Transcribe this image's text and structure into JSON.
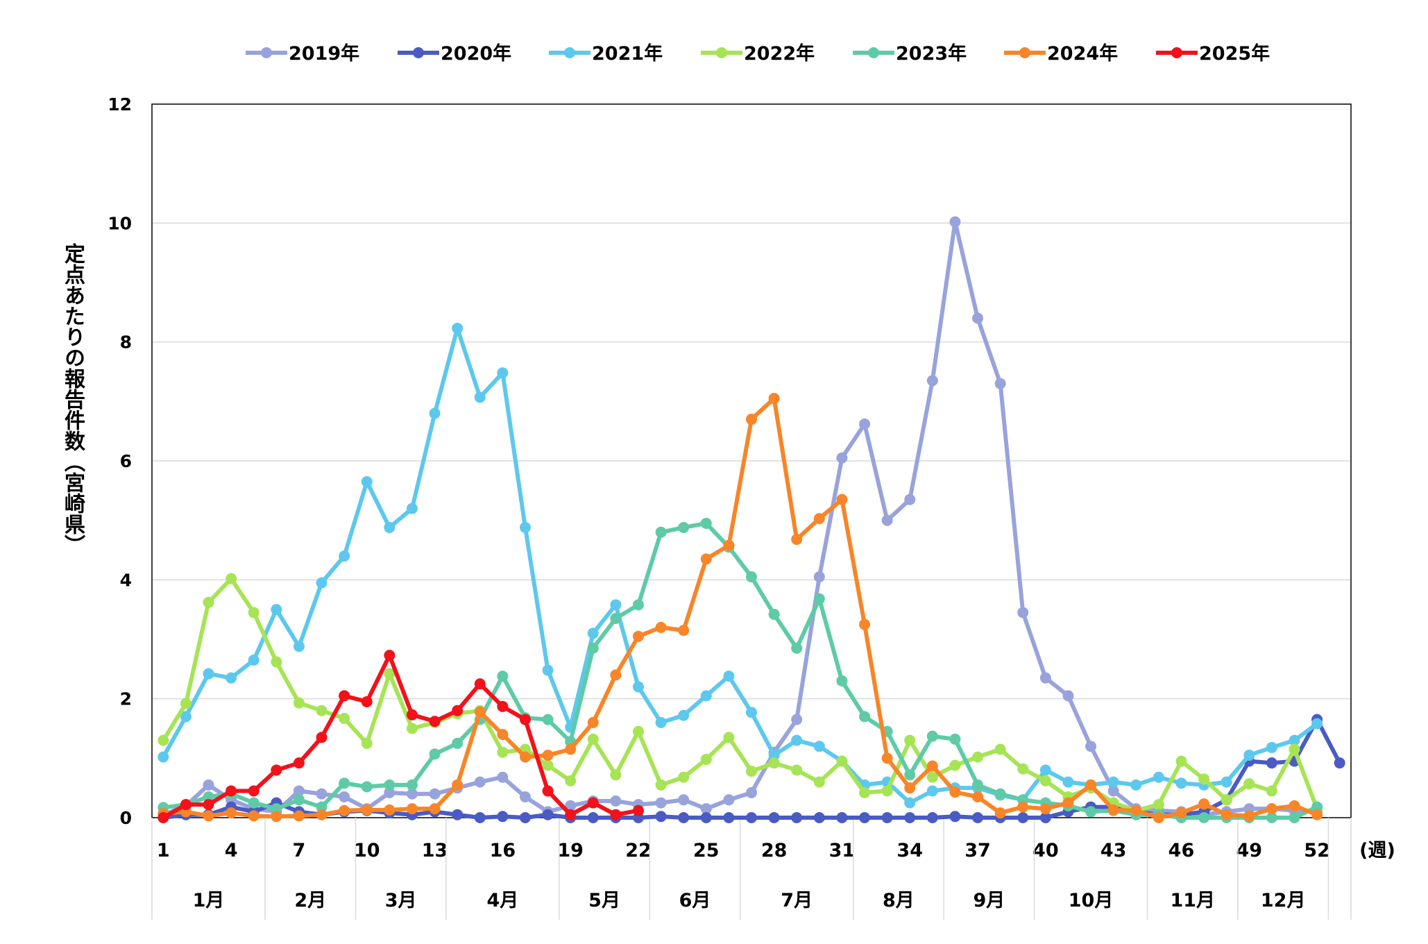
{
  "chart_data": {
    "type": "line",
    "ylabel": "定点あたりの報告件数（宮崎県）",
    "xlabel_unit": "(週)",
    "ylim": [
      0,
      12
    ],
    "yticks": [
      0,
      2,
      4,
      6,
      8,
      10,
      12
    ],
    "xlim": [
      1,
      53
    ],
    "xticks": [
      1,
      4,
      7,
      10,
      13,
      16,
      19,
      22,
      25,
      28,
      31,
      34,
      37,
      40,
      43,
      46,
      49,
      52
    ],
    "grid": "horizontal",
    "legend_position": "top",
    "months": [
      {
        "label": "1月",
        "start": 1,
        "end": 5
      },
      {
        "label": "2月",
        "start": 6,
        "end": 9
      },
      {
        "label": "3月",
        "start": 10,
        "end": 13
      },
      {
        "label": "4月",
        "start": 14,
        "end": 18
      },
      {
        "label": "5月",
        "start": 19,
        "end": 22
      },
      {
        "label": "6月",
        "start": 23,
        "end": 26
      },
      {
        "label": "7月",
        "start": 27,
        "end": 31
      },
      {
        "label": "8月",
        "start": 32,
        "end": 35
      },
      {
        "label": "9月",
        "start": 36,
        "end": 39
      },
      {
        "label": "10月",
        "start": 40,
        "end": 44
      },
      {
        "label": "11月",
        "start": 45,
        "end": 48
      },
      {
        "label": "12月",
        "start": 49,
        "end": 52
      }
    ],
    "series": [
      {
        "name": "2019年",
        "color": "#98A3DC",
        "start": 1,
        "values": [
          0.05,
          0.2,
          0.55,
          0.3,
          0.15,
          0.1,
          0.45,
          0.4,
          0.35,
          0.15,
          0.42,
          0.4,
          0.4,
          0.5,
          0.6,
          0.68,
          0.35,
          0.1,
          0.2,
          0.28,
          0.28,
          0.22,
          0.25,
          0.3,
          0.15,
          0.3,
          0.42,
          1.1,
          1.65,
          4.05,
          6.05,
          6.62,
          5.0,
          5.35,
          7.35,
          10.02,
          8.4,
          7.3,
          3.45,
          2.35,
          2.05,
          1.2,
          0.45,
          0.15,
          0.12,
          0.1,
          0.05,
          0.1,
          0.15,
          0.15,
          0.12,
          0.1
        ]
      },
      {
        "name": "2020年",
        "color": "#4A5BC4",
        "start": 1,
        "values": [
          0.0,
          0.05,
          0.05,
          0.18,
          0.1,
          0.25,
          0.1,
          0.05,
          0.1,
          0.12,
          0.08,
          0.05,
          0.1,
          0.05,
          0.0,
          0.02,
          0.0,
          0.05,
          0.0,
          0.0,
          0.0,
          0.0,
          0.02,
          0.0,
          0.0,
          0.0,
          0.0,
          0.0,
          0.0,
          0.0,
          0.0,
          0.0,
          0.0,
          0.0,
          0.0,
          0.02,
          0.0,
          0.0,
          0.0,
          0.0,
          0.1,
          0.18,
          0.18,
          0.1,
          0.05,
          0.05,
          0.1,
          0.3,
          0.95,
          0.92,
          0.95,
          1.65,
          0.92
        ]
      },
      {
        "name": "2021年",
        "color": "#5DC8ED",
        "start": 1,
        "values": [
          1.02,
          1.7,
          2.42,
          2.35,
          2.65,
          3.5,
          2.88,
          3.95,
          4.4,
          5.65,
          4.88,
          5.2,
          6.8,
          8.23,
          7.07,
          7.48,
          4.88,
          2.48,
          1.52,
          3.1,
          3.58,
          2.2,
          1.6,
          1.72,
          2.05,
          2.38,
          1.77,
          1.05,
          1.3,
          1.2,
          0.95,
          0.55,
          0.6,
          0.25,
          0.45,
          0.5,
          0.5,
          0.38,
          0.3,
          0.8,
          0.6,
          0.55,
          0.6,
          0.55,
          0.68,
          0.58,
          0.55,
          0.6,
          1.05,
          1.18,
          1.3,
          1.58
        ]
      },
      {
        "name": "2022年",
        "color": "#A6E455",
        "start": 1,
        "values": [
          1.3,
          1.92,
          3.62,
          4.02,
          3.45,
          2.62,
          1.93,
          1.8,
          1.67,
          1.25,
          2.42,
          1.5,
          1.6,
          1.75,
          1.8,
          1.1,
          1.15,
          0.88,
          0.62,
          1.32,
          0.72,
          1.45,
          0.55,
          0.68,
          0.98,
          1.35,
          0.78,
          0.92,
          0.8,
          0.6,
          0.95,
          0.42,
          0.45,
          1.3,
          0.68,
          0.88,
          1.02,
          1.15,
          0.82,
          0.62,
          0.35,
          0.5,
          0.25,
          0.12,
          0.22,
          0.95,
          0.65,
          0.3,
          0.57,
          0.45,
          1.15,
          0.15
        ]
      },
      {
        "name": "2023年",
        "color": "#5ECBA6",
        "start": 1,
        "values": [
          0.17,
          0.22,
          0.35,
          0.4,
          0.25,
          0.15,
          0.3,
          0.18,
          0.58,
          0.52,
          0.55,
          0.55,
          1.07,
          1.25,
          1.65,
          2.38,
          1.68,
          1.65,
          1.28,
          2.85,
          3.35,
          3.58,
          4.8,
          4.88,
          4.95,
          4.55,
          4.05,
          3.42,
          2.85,
          3.68,
          2.3,
          1.7,
          1.45,
          0.72,
          1.37,
          1.32,
          0.55,
          0.4,
          0.3,
          0.25,
          0.2,
          0.1,
          0.12,
          0.05,
          0.05,
          0.0,
          0.0,
          0.0,
          0.0,
          0.0,
          0.0,
          0.18
        ]
      },
      {
        "name": "2024年",
        "color": "#F88528",
        "start": 1,
        "values": [
          0.07,
          0.1,
          0.03,
          0.08,
          0.03,
          0.02,
          0.03,
          0.05,
          0.12,
          0.13,
          0.13,
          0.15,
          0.15,
          0.55,
          1.78,
          1.4,
          1.02,
          1.05,
          1.15,
          1.6,
          2.4,
          3.05,
          3.2,
          3.15,
          4.35,
          4.58,
          6.7,
          7.05,
          4.68,
          5.03,
          5.35,
          3.25,
          1.0,
          0.5,
          0.87,
          0.43,
          0.35,
          0.08,
          0.18,
          0.15,
          0.25,
          0.55,
          0.13,
          0.12,
          0.0,
          0.08,
          0.23,
          0.05,
          0.03,
          0.15,
          0.2,
          0.05
        ]
      },
      {
        "name": "2025年",
        "color": "#F3111A",
        "start": 1,
        "values": [
          0.0,
          0.22,
          0.22,
          0.45,
          0.45,
          0.8,
          0.92,
          1.35,
          2.05,
          1.95,
          2.73,
          1.73,
          1.62,
          1.8,
          2.25,
          1.87,
          1.65,
          0.45,
          0.05,
          0.25,
          0.05,
          0.12
        ]
      }
    ]
  }
}
